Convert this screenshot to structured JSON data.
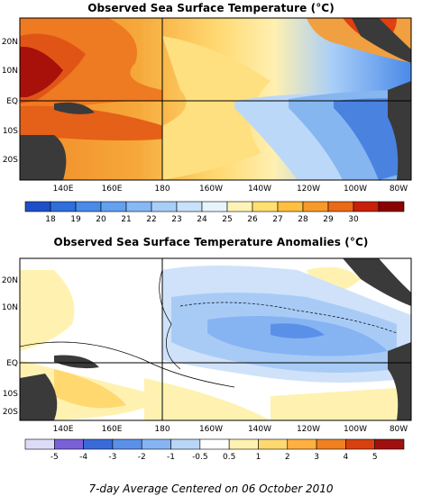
{
  "panel1": {
    "title": "Observed Sea Surface Temperature (°C)",
    "lat_labels": [
      "20N",
      "10N",
      "EQ",
      "10S",
      "20S"
    ],
    "lon_labels": [
      "140E",
      "160E",
      "180",
      "160W",
      "140W",
      "120W",
      "100W",
      "80W"
    ],
    "colorbar": {
      "labels": [
        "18",
        "19",
        "20",
        "21",
        "22",
        "23",
        "24",
        "25",
        "26",
        "27",
        "28",
        "29",
        "30"
      ],
      "colors": [
        "#1f4fc8",
        "#2f6fdc",
        "#4a8ae8",
        "#64a0f0",
        "#86b8f4",
        "#a8cef8",
        "#c8e2fb",
        "#e8f4fc",
        "#fff4b8",
        "#ffe070",
        "#ffbf40",
        "#f79a2a",
        "#ea6a18",
        "#c8200a",
        "#8b0000"
      ]
    }
  },
  "panel2": {
    "title": "Observed Sea Surface Temperature Anomalies (°C)",
    "lat_labels": [
      "20N",
      "10N",
      "EQ",
      "10S",
      "20S"
    ],
    "lon_labels": [
      "140E",
      "160E",
      "180",
      "160W",
      "140W",
      "120W",
      "100W",
      "80W"
    ],
    "colorbar": {
      "labels": [
        "-5",
        "-4",
        "-3",
        "-2",
        "-1",
        "-0.5",
        "0.5",
        "1",
        "2",
        "3",
        "4",
        "5"
      ],
      "colors": [
        "#dcdcf8",
        "#7a60d8",
        "#3a6ad8",
        "#5a90e8",
        "#86b4f2",
        "#b8d6f8",
        "#ffffff",
        "#fff2b0",
        "#ffd870",
        "#ffb040",
        "#f08020",
        "#d84010",
        "#a01010"
      ]
    }
  },
  "footer": "7-day Average Centered on 06 October 2010",
  "legend_colors": {
    "land": "#3a3a3a"
  }
}
